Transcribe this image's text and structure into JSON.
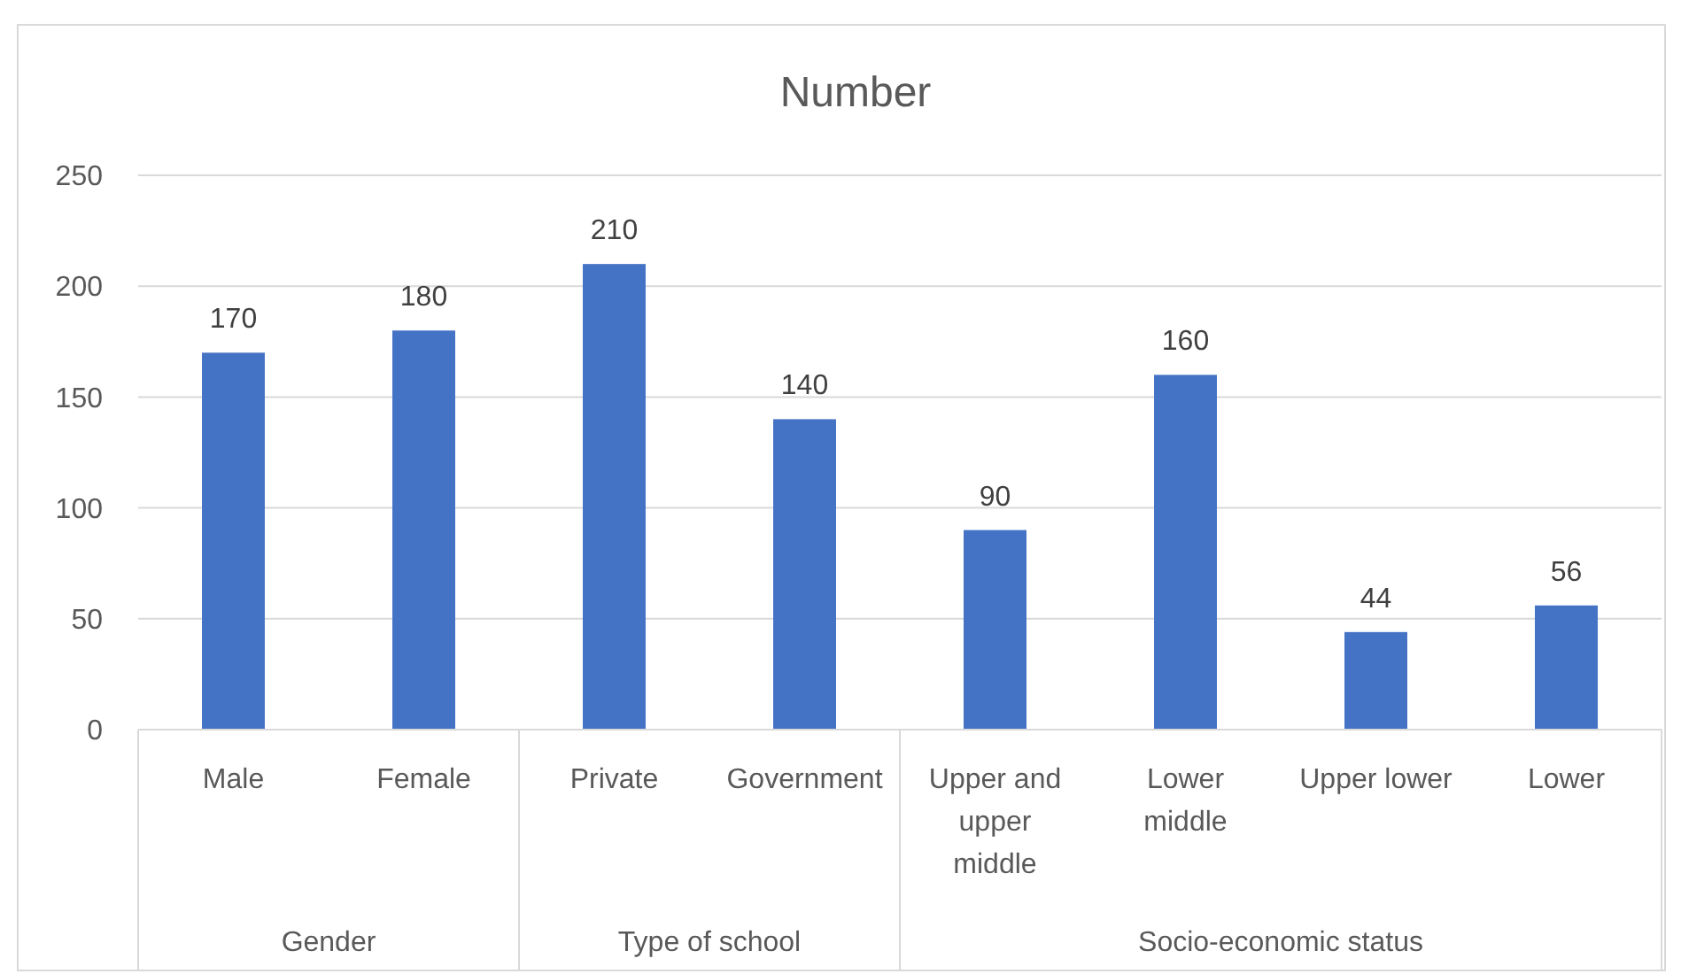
{
  "chart_data": {
    "type": "bar",
    "title": "Number",
    "categories": [
      "Male",
      "Female",
      "Private",
      "Government",
      "Upper and upper middle",
      "Lower middle",
      "Upper lower",
      "Lower"
    ],
    "values": [
      170,
      180,
      210,
      140,
      90,
      160,
      44,
      56
    ],
    "color": "#4472c4",
    "ylim": [
      0,
      250
    ],
    "yticks": [
      0,
      50,
      100,
      150,
      200,
      250
    ],
    "grid": "y",
    "data_labels": true,
    "annotations": [
      "Gender",
      "Type of school",
      "Socio-economic status"
    ]
  }
}
